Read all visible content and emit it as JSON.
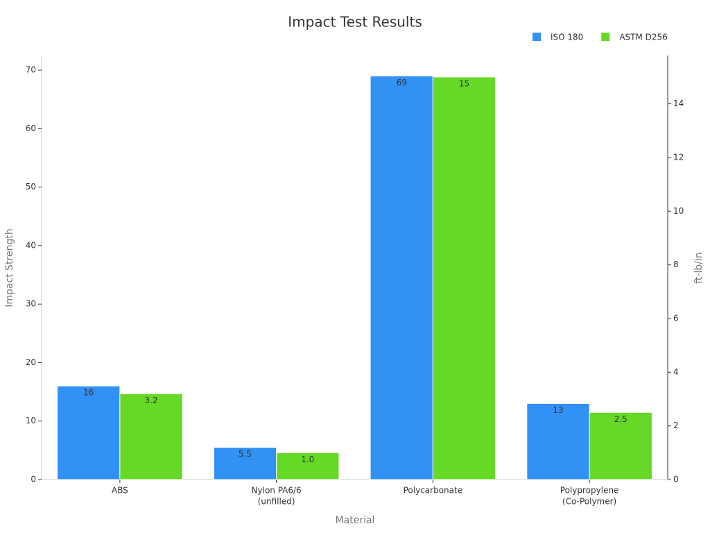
{
  "chart_data": {
    "type": "bar",
    "title": "Impact Test Results",
    "x_label": "Material",
    "y_label": "Impact Strength",
    "y2_label": "ft-lb/in",
    "categories": [
      [
        "ABS"
      ],
      [
        "Nylon PA6/6",
        "(unfilled)"
      ],
      [
        "Polycarbonate"
      ],
      [
        "Polypropylene",
        "(Co-Polymer)"
      ]
    ],
    "series": [
      {
        "name": "ISO 180",
        "color": "#3291f5",
        "values": [
          16,
          5.5,
          69,
          13
        ]
      },
      {
        "name": "ASTM D256",
        "color": "#66d926",
        "axis": "y2",
        "values": [
          3.2,
          1,
          15,
          2.5
        ],
        "value_labels": [
          "3.2",
          "1.0",
          "15",
          "2.5"
        ]
      }
    ],
    "ylim": [
      0,
      72.5
    ],
    "yticks": [
      0,
      10,
      20,
      30,
      40,
      50,
      60,
      70
    ],
    "y2lim": [
      0,
      15.8
    ],
    "y2ticks": [
      0,
      2,
      4,
      6,
      8,
      10,
      12,
      14
    ],
    "legend": "top-right"
  }
}
